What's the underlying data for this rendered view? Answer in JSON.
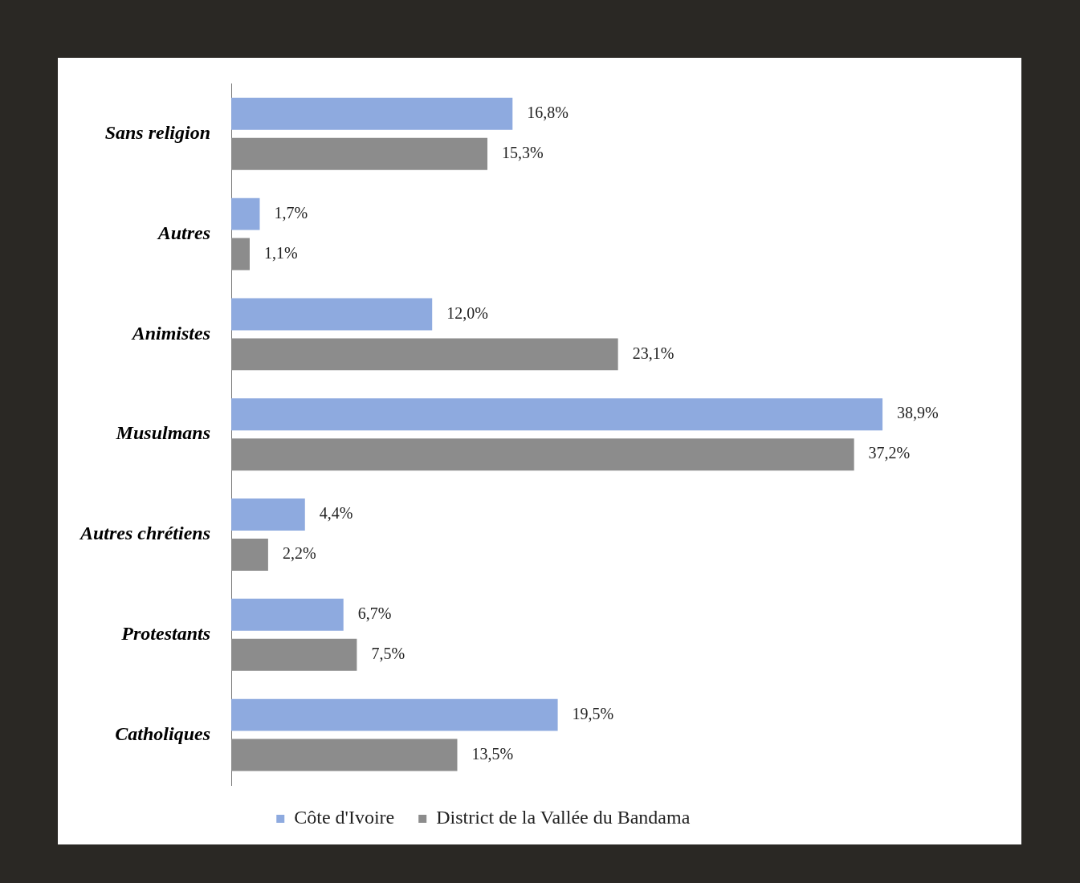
{
  "chart_data": {
    "type": "bar",
    "orientation": "horizontal",
    "categories": [
      "Sans religion",
      "Autres",
      "Animistes",
      "Musulmans",
      "Autres chrétiens",
      "Protestants",
      "Catholiques"
    ],
    "series": [
      {
        "name": "Côte d'Ivoire",
        "color": "#8eaadf",
        "values": [
          16.8,
          1.7,
          12.0,
          38.9,
          4.4,
          6.7,
          19.5
        ],
        "value_labels": [
          "16,8%",
          "1,7%",
          "12,0%",
          "38,9%",
          "4,4%",
          "6,7%",
          "19,5%"
        ]
      },
      {
        "name": "District de la Vallée du Bandama",
        "color": "#8c8c8c",
        "values": [
          15.3,
          1.1,
          23.1,
          37.2,
          2.2,
          7.5,
          13.5
        ],
        "value_labels": [
          "15,3%",
          "1,1%",
          "23,1%",
          "37,2%",
          "2,2%",
          "7,5%",
          "13,5%"
        ]
      }
    ],
    "legend": "bottom"
  }
}
